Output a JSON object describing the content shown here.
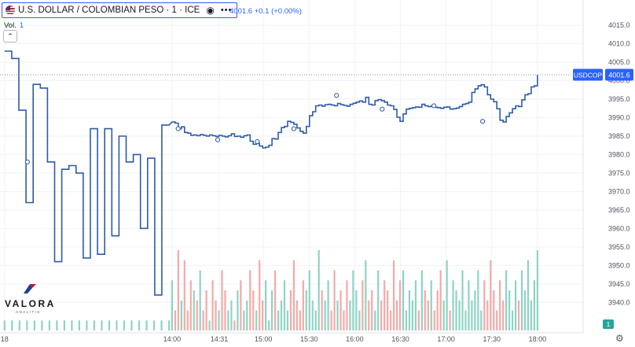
{
  "header": {
    "title": "U.S. DOLLAR / COLOMBIAN PESO · 1 · ICE",
    "price_info": "4001.6 +0.1 (+0.00%)",
    "vol_label": "Vol.",
    "vol_value": "1"
  },
  "logo": {
    "word": "VALORA",
    "sub": "ANALITIK"
  },
  "badges": {
    "symbol": "USDCOP",
    "price": "4001.6",
    "volume": "1"
  },
  "colors": {
    "line": "#2e5ba8",
    "vol_up": "#8fd3c4",
    "vol_down": "#f4aaa7",
    "accent": "#2962ff",
    "grid": "#f0f3fa"
  },
  "chart_data": {
    "type": "line",
    "symbol": "USDCOP",
    "interval": "1",
    "last_price": 4001.6,
    "y_ticks": [
      4015,
      4010,
      4005,
      4000,
      3995,
      3990,
      3985,
      3980,
      3975,
      3970,
      3965,
      3960,
      3955,
      3950,
      3945,
      3940
    ],
    "ylim": [
      3937.5,
      4018
    ],
    "x_ticks": [
      {
        "label": "18",
        "t": -110
      },
      {
        "label": "14:00",
        "t": 0
      },
      {
        "label": "14:31",
        "t": 31
      },
      {
        "label": "15:00",
        "t": 60
      },
      {
        "label": "15:30",
        "t": 90
      },
      {
        "label": "16:00",
        "t": 120
      },
      {
        "label": "16:30",
        "t": 150
      },
      {
        "label": "17:00",
        "t": 180
      },
      {
        "label": "17:30",
        "t": 210
      },
      {
        "label": "18:00",
        "t": 240
      }
    ],
    "xlim": [
      -113,
      270
    ],
    "pre_series": [
      4008,
      4006,
      3992,
      3967,
      3999,
      3998,
      3978,
      3951,
      3976,
      3977,
      3975,
      3952,
      3987,
      3953,
      3987,
      3958,
      3985,
      3978,
      3980,
      3960,
      3979,
      3942,
      3988
    ],
    "series": [
      3988.8,
      3988.5,
      3987,
      3987.5,
      3986,
      3985.8,
      3985.2,
      3985.3,
      3985.1,
      3985.4,
      3985.2,
      3985,
      3985.3,
      3985.1,
      3984.9,
      3985.2,
      3985,
      3984.8,
      3985.1,
      3985.6,
      3984.9,
      3985,
      3984.7,
      3985.1,
      3985.3,
      3983.6,
      3982.8,
      3983,
      3982.3,
      3981.8,
      3982,
      3982.5,
      3984.3,
      3984.2,
      3986,
      3987.3,
      3987.6,
      3989,
      3988.7,
      3988.2,
      3987.2,
      3986.3,
      3985.8,
      3987.6,
      3990.5,
      3991.6,
      3993.2,
      3993.4,
      3993.1,
      3993.5,
      3993.6,
      3993.4,
      3993.2,
      3993.8,
      3993.5,
      3993.3,
      3993.1,
      3993.6,
      3993.9,
      3994.2,
      3994.5,
      3994.2,
      3995.5,
      3993.6,
      3993.4,
      3994.6,
      3994.9,
      3994.6,
      3994.2,
      3993.4,
      3993.2,
      3992.2,
      3990.1,
      3989,
      3991,
      3992.3,
      3992.5,
      3992.7,
      3992.9,
      3992.8,
      3993.6,
      3993.2,
      3993,
      3993.1,
      3992.8,
      3992.7,
      3992.5,
      3992.8,
      3992.9,
      3992.3,
      3992.4,
      3992.6,
      3993,
      3993.6,
      3993.8,
      3994.2,
      3996.8,
      3997.8,
      3998.6,
      3998.9,
      3998.3,
      3996.2,
      3995,
      3994.3,
      3992.4,
      3989.3,
      3988.8,
      3990.3,
      3991.3,
      3992.4,
      3993.2,
      3993,
      3994.8,
      3996.2,
      3996.5,
      3998.3,
      3998.6,
      4001.6
    ],
    "volume_max": 8,
    "volume": [
      5,
      2,
      8,
      3,
      7,
      2,
      5,
      4,
      3,
      6,
      2,
      4,
      1,
      5,
      3,
      2,
      6,
      4,
      2,
      3,
      1,
      4,
      5,
      2,
      3,
      6,
      4,
      2,
      7,
      3,
      5,
      1,
      4,
      6,
      2,
      3,
      5,
      2,
      4,
      7,
      3,
      2,
      5,
      4,
      6,
      3,
      2,
      8,
      4,
      3,
      5,
      2,
      6,
      3,
      4,
      2,
      5,
      3,
      6,
      4,
      2,
      5,
      7,
      3,
      4,
      2,
      6,
      3,
      5,
      4,
      2,
      7,
      3,
      5,
      6,
      2,
      4,
      3,
      5,
      2,
      6,
      4,
      3,
      5,
      2,
      4,
      6,
      3,
      7,
      2,
      5,
      4,
      3,
      6,
      2,
      5,
      3,
      4,
      6,
      2,
      5,
      3,
      7,
      4,
      2,
      5,
      3,
      6,
      4,
      2,
      5,
      3,
      6,
      4,
      7,
      3,
      5,
      8
    ],
    "pre_volume": [
      1,
      1,
      1,
      1,
      1,
      1,
      1,
      1,
      1,
      1,
      1,
      1,
      1,
      1,
      1,
      1,
      1,
      1,
      1,
      1,
      1,
      1,
      1
    ]
  }
}
